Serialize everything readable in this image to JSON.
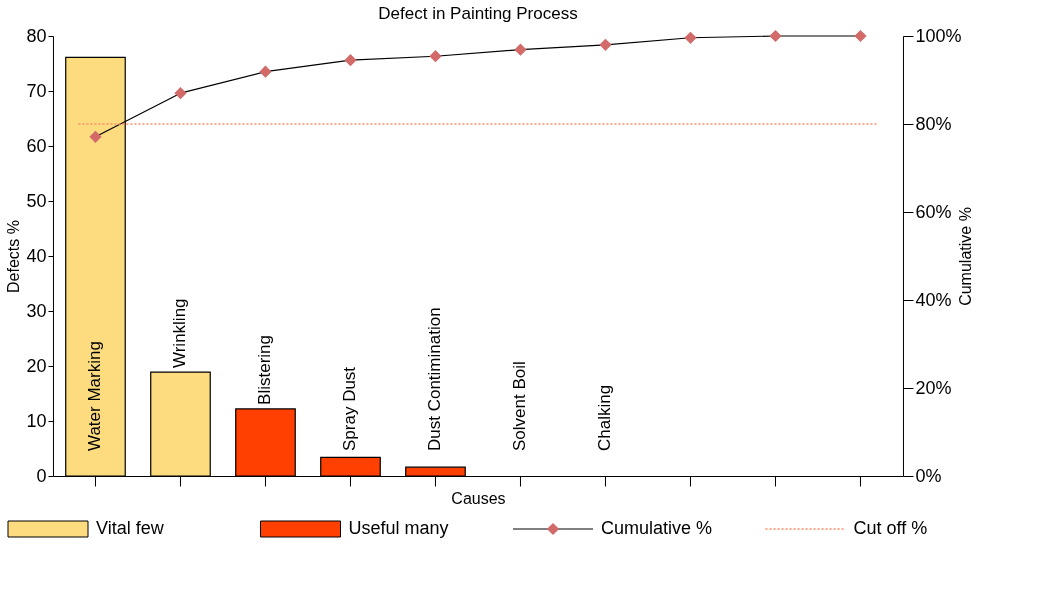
{
  "chart_data": {
    "type": "bar",
    "title": "Defect in Painting Process",
    "xlabel": "Causes",
    "ylabel": "Defects %",
    "y2label": "Cumulative %",
    "categories": [
      "Water Marking",
      "Wrinkling",
      "Blistering",
      "Spray Dust",
      "Dust Contimination",
      "Solvent  Boil",
      "Chalking",
      null,
      null,
      null
    ],
    "series": [
      {
        "name": "Vital few",
        "color": "#fddc80",
        "values": [
          76.1,
          18.9,
          null,
          null,
          null,
          null,
          null,
          null,
          null,
          null
        ]
      },
      {
        "name": "Useful many",
        "color": "#ff4000",
        "values": [
          null,
          null,
          12.2,
          3.4,
          1.6,
          null,
          null,
          null,
          null,
          null
        ]
      },
      {
        "name": "Cumulative %",
        "type": "line",
        "axis": "y2",
        "color": "#d26a6a",
        "marker": "diamond",
        "values": [
          77.1,
          87.0,
          91.9,
          94.5,
          95.4,
          96.9,
          98.0,
          99.6,
          100,
          100
        ]
      }
    ],
    "ylim": [
      0,
      80
    ],
    "yticks": [
      0,
      10,
      20,
      30,
      40,
      50,
      60,
      70,
      80
    ],
    "y2lim": [
      0,
      100
    ],
    "y2ticks": [
      {
        "value": 0,
        "label": "0%"
      },
      {
        "value": 20,
        "label": "20%"
      },
      {
        "value": 40,
        "label": "40%"
      },
      {
        "value": 60,
        "label": "60%"
      },
      {
        "value": 80,
        "label": "80%"
      },
      {
        "value": 100,
        "label": "100%"
      }
    ],
    "ref_lines": [
      {
        "axis": "y2",
        "value": 80,
        "label": "Cut off %",
        "color": "#ff8c69",
        "line_style": "dotted"
      }
    ],
    "legend": "bottom",
    "grid": false
  }
}
